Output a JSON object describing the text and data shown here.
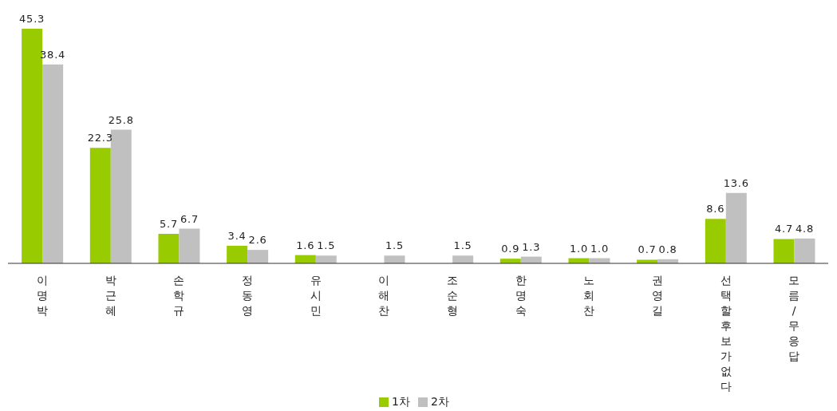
{
  "chart_data": {
    "type": "bar",
    "categories": [
      "이명박",
      "박근혜",
      "손학규",
      "정동영",
      "유시민",
      "이해찬",
      "조순형",
      "한명숙",
      "노회찬",
      "권영길",
      "선택할후보가없다",
      "모름/무응답"
    ],
    "series": [
      {
        "name": "1차",
        "color": "#99cc00",
        "values": [
          45.3,
          22.3,
          5.7,
          3.4,
          1.6,
          null,
          null,
          0.9,
          1.0,
          0.7,
          8.6,
          4.7
        ],
        "value_labels": [
          "45.3",
          "22.3",
          "5.7",
          "3.4",
          "1.6",
          null,
          null,
          "0.9",
          "1.0",
          "0.7",
          "8.6",
          "4.7"
        ]
      },
      {
        "name": "2차",
        "color": "#c0c0c0",
        "values": [
          38.4,
          25.8,
          6.7,
          2.6,
          1.5,
          1.5,
          1.5,
          1.3,
          1.0,
          0.8,
          13.6,
          4.8
        ],
        "value_labels": [
          "38.4",
          "25.8",
          "6.7",
          "2.6",
          "1.5",
          "1.5",
          "1.5",
          "1.3",
          "1.0",
          "0.8",
          "13.6",
          "4.8"
        ]
      }
    ],
    "legend": "bottom"
  }
}
